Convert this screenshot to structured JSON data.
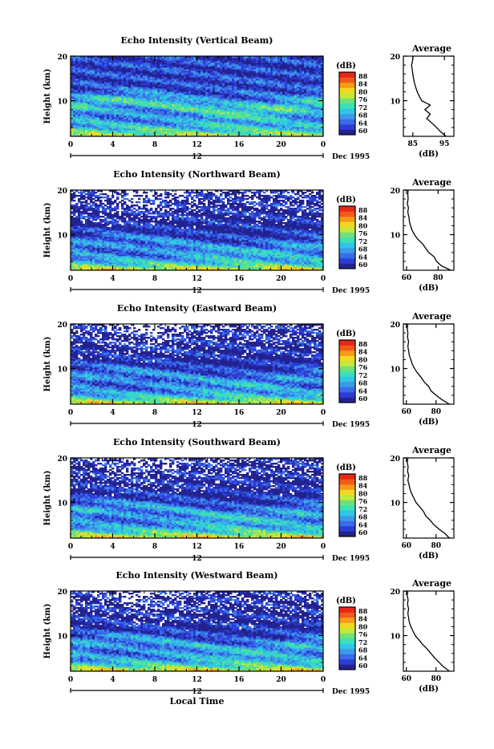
{
  "figure": {
    "bottom_label": "Local Time",
    "colors": [
      "#23238f",
      "#2c3dd6",
      "#3a6be8",
      "#3c9ae8",
      "#2fc6e8",
      "#3ae0b6",
      "#70e07a",
      "#c4e83c",
      "#f2d820",
      "#f79a18",
      "#f25a1a",
      "#e82814"
    ]
  },
  "chart_data": [
    {
      "type": "heatmap",
      "title": "Echo Intensity (Vertical Beam)",
      "ylabel": "Height (km)",
      "x_ticks": [
        "0",
        "4",
        "8",
        "12",
        "16",
        "20",
        "0"
      ],
      "xlim": [
        0,
        24
      ],
      "y_ticks": [
        "20",
        "10"
      ],
      "ylim": [
        2,
        20
      ],
      "date_bar": {
        "mid_label": "12",
        "date_label": "Dec 1995"
      },
      "colorbar": {
        "unit": "(dB)",
        "ticks": [
          "88",
          "84",
          "80",
          "76",
          "72",
          "68",
          "64",
          "60"
        ],
        "range": [
          58,
          90
        ]
      },
      "texture": {
        "base": 62,
        "low_boost": 16,
        "low_scale": 3.2,
        "mid_boost": 8,
        "mid_center": 9,
        "missing_frac": 0.0
      },
      "average": {
        "title": "Average",
        "xlabel": "(dB)",
        "x_ticks": [
          "85",
          "95"
        ],
        "xlim": [
          82,
          98
        ],
        "y_ticks": [
          "20",
          "10"
        ],
        "profile": [
          [
            95.5,
            2
          ],
          [
            93.8,
            3
          ],
          [
            92.5,
            4
          ],
          [
            91.0,
            5
          ],
          [
            89.4,
            6
          ],
          [
            90.5,
            7
          ],
          [
            88.8,
            8
          ],
          [
            90.5,
            9
          ],
          [
            87.8,
            10
          ],
          [
            87.0,
            11
          ],
          [
            86.4,
            12
          ],
          [
            85.9,
            13
          ],
          [
            85.5,
            14
          ],
          [
            85.2,
            15
          ],
          [
            85.0,
            16
          ],
          [
            84.8,
            17
          ],
          [
            84.6,
            18
          ],
          [
            84.9,
            19
          ],
          [
            85.1,
            20
          ]
        ]
      }
    },
    {
      "type": "heatmap",
      "title": "Echo Intensity (Northward Beam)",
      "ylabel": "Height (km)",
      "x_ticks": [
        "0",
        "4",
        "8",
        "12",
        "16",
        "20",
        "0"
      ],
      "xlim": [
        0,
        24
      ],
      "y_ticks": [
        "20",
        "10"
      ],
      "ylim": [
        2,
        20
      ],
      "date_bar": {
        "mid_label": "12",
        "date_label": "Dec 1995"
      },
      "colorbar": {
        "unit": "(dB)",
        "ticks": [
          "88",
          "84",
          "80",
          "76",
          "72",
          "68",
          "64",
          "60"
        ],
        "range": [
          58,
          90
        ]
      },
      "texture": {
        "base": 60,
        "low_boost": 22,
        "low_scale": 2.4,
        "mid_boost": 5,
        "mid_center": 7.5,
        "missing_frac": 0.45
      },
      "average": {
        "title": "Average",
        "xlabel": "(dB)",
        "x_ticks": [
          "60",
          "80"
        ],
        "xlim": [
          58,
          90
        ],
        "y_ticks": [
          "20",
          "10"
        ],
        "profile": [
          [
            88.0,
            2
          ],
          [
            82.0,
            3
          ],
          [
            79.0,
            4
          ],
          [
            77.5,
            5
          ],
          [
            74.0,
            6
          ],
          [
            72.0,
            7
          ],
          [
            70.0,
            8
          ],
          [
            67.0,
            9
          ],
          [
            65.0,
            10
          ],
          [
            63.5,
            11
          ],
          [
            62.5,
            12
          ],
          [
            61.8,
            13
          ],
          [
            61.5,
            14
          ],
          [
            60.8,
            15
          ],
          [
            61.2,
            16
          ],
          [
            60.5,
            17
          ],
          [
            61.0,
            18
          ],
          [
            60.8,
            19
          ],
          [
            61.0,
            20
          ]
        ]
      }
    },
    {
      "type": "heatmap",
      "title": "Echo Intensity (Eastward Beam)",
      "ylabel": "Height (km)",
      "x_ticks": [
        "0",
        "4",
        "8",
        "12",
        "16",
        "20",
        "0"
      ],
      "xlim": [
        0,
        24
      ],
      "y_ticks": [
        "20",
        "10"
      ],
      "ylim": [
        2,
        20
      ],
      "date_bar": {
        "mid_label": "12",
        "date_label": "Dec 1995"
      },
      "colorbar": {
        "unit": "(dB)",
        "ticks": [
          "88",
          "84",
          "80",
          "76",
          "72",
          "68",
          "64",
          "60"
        ],
        "range": [
          58,
          90
        ]
      },
      "texture": {
        "base": 60,
        "low_boost": 22,
        "low_scale": 2.4,
        "mid_boost": 5,
        "mid_center": 8,
        "missing_frac": 0.42
      },
      "average": {
        "title": "Average",
        "xlabel": "(dB)",
        "x_ticks": [
          "60",
          "80"
        ],
        "xlim": [
          58,
          92
        ],
        "y_ticks": [
          "20",
          "10"
        ],
        "profile": [
          [
            89.0,
            2
          ],
          [
            84.0,
            3
          ],
          [
            80.0,
            4
          ],
          [
            76.5,
            5
          ],
          [
            75.0,
            6
          ],
          [
            72.0,
            7
          ],
          [
            70.0,
            8
          ],
          [
            67.5,
            9
          ],
          [
            65.5,
            10
          ],
          [
            64.0,
            11
          ],
          [
            63.0,
            12
          ],
          [
            62.0,
            13
          ],
          [
            61.5,
            14
          ],
          [
            61.0,
            15
          ],
          [
            61.5,
            16
          ],
          [
            60.8,
            17
          ],
          [
            61.0,
            18
          ],
          [
            60.6,
            19
          ],
          [
            61.0,
            20
          ]
        ]
      }
    },
    {
      "type": "heatmap",
      "title": "Echo Intensity (Southward Beam)",
      "ylabel": "Height (km)",
      "x_ticks": [
        "0",
        "4",
        "8",
        "12",
        "16",
        "20",
        "0"
      ],
      "xlim": [
        0,
        24
      ],
      "y_ticks": [
        "20",
        "10"
      ],
      "ylim": [
        2,
        20
      ],
      "date_bar": {
        "mid_label": "12",
        "date_label": "Dec 1995"
      },
      "colorbar": {
        "unit": "(dB)",
        "ticks": [
          "88",
          "84",
          "80",
          "76",
          "72",
          "68",
          "64",
          "60"
        ],
        "range": [
          58,
          90
        ]
      },
      "texture": {
        "base": 60,
        "low_boost": 22,
        "low_scale": 2.6,
        "mid_boost": 6,
        "mid_center": 8,
        "missing_frac": 0.4
      },
      "average": {
        "title": "Average",
        "xlabel": "(dB)",
        "x_ticks": [
          "60",
          "80"
        ],
        "xlim": [
          58,
          92
        ],
        "y_ticks": [
          "20",
          "10"
        ],
        "profile": [
          [
            89.0,
            2
          ],
          [
            86.0,
            3
          ],
          [
            82.0,
            4
          ],
          [
            78.5,
            5
          ],
          [
            76.0,
            6
          ],
          [
            73.0,
            7
          ],
          [
            71.5,
            8
          ],
          [
            69.0,
            9
          ],
          [
            66.5,
            10
          ],
          [
            65.0,
            11
          ],
          [
            63.5,
            12
          ],
          [
            62.5,
            13
          ],
          [
            61.8,
            14
          ],
          [
            61.0,
            15
          ],
          [
            61.6,
            16
          ],
          [
            60.8,
            17
          ],
          [
            61.2,
            18
          ],
          [
            60.6,
            19
          ],
          [
            61.0,
            20
          ]
        ]
      }
    },
    {
      "type": "heatmap",
      "title": "Echo Intensity (Westward Beam)",
      "ylabel": "Height (km)",
      "x_ticks": [
        "0",
        "4",
        "8",
        "12",
        "16",
        "20",
        "0"
      ],
      "xlim": [
        0,
        24
      ],
      "y_ticks": [
        "20",
        "10"
      ],
      "ylim": [
        2,
        20
      ],
      "date_bar": {
        "mid_label": "12",
        "date_label": "Dec 1995"
      },
      "colorbar": {
        "unit": "(dB)",
        "ticks": [
          "88",
          "84",
          "80",
          "76",
          "72",
          "68",
          "64",
          "60"
        ],
        "range": [
          58,
          90
        ]
      },
      "texture": {
        "base": 60,
        "low_boost": 22,
        "low_scale": 2.6,
        "mid_boost": 6,
        "mid_center": 8,
        "missing_frac": 0.4
      },
      "average": {
        "title": "Average",
        "xlabel": "(dB)",
        "x_ticks": [
          "60",
          "80"
        ],
        "xlim": [
          58,
          92
        ],
        "y_ticks": [
          "20",
          "10"
        ],
        "profile": [
          [
            89.0,
            2
          ],
          [
            85.0,
            3
          ],
          [
            82.0,
            4
          ],
          [
            79.0,
            5
          ],
          [
            76.5,
            6
          ],
          [
            74.0,
            7
          ],
          [
            71.0,
            8
          ],
          [
            68.5,
            9
          ],
          [
            66.0,
            10
          ],
          [
            64.5,
            11
          ],
          [
            63.0,
            12
          ],
          [
            62.0,
            13
          ],
          [
            61.5,
            14
          ],
          [
            61.0,
            15
          ],
          [
            61.5,
            16
          ],
          [
            60.8,
            17
          ],
          [
            61.2,
            18
          ],
          [
            60.6,
            19
          ],
          [
            61.0,
            20
          ]
        ]
      }
    }
  ]
}
